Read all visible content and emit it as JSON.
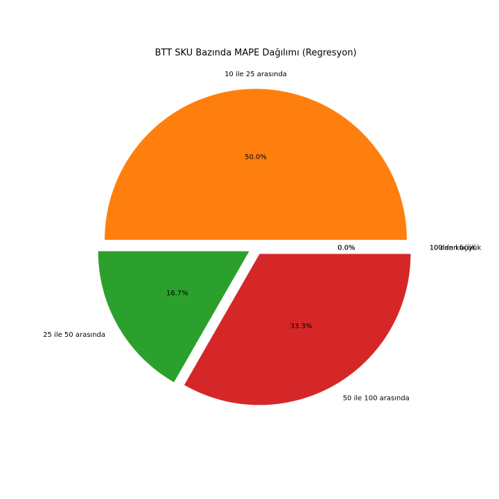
{
  "chart_data": {
    "type": "pie",
    "title": "BTT SKU Bazında MAPE Dağılımı (Regresyon)",
    "counterclock": true,
    "start_angle_deg": 0,
    "categories": [
      "10'dan küçük",
      "10 ile 25 arasında",
      "25 ile 50 arasında",
      "50 ile 100 arasında",
      "100'den büyük"
    ],
    "values": [
      0.0,
      50.0,
      16.7,
      33.3,
      0.0
    ],
    "value_labels": [
      "0.0%",
      "50.0%",
      "16.7%",
      "33.3%",
      "0.0%"
    ],
    "colors": [
      "#1f77b4",
      "#ff7f0e",
      "#2ca02c",
      "#d62728",
      "#9467bd"
    ],
    "exploded": true,
    "legend": "none"
  }
}
